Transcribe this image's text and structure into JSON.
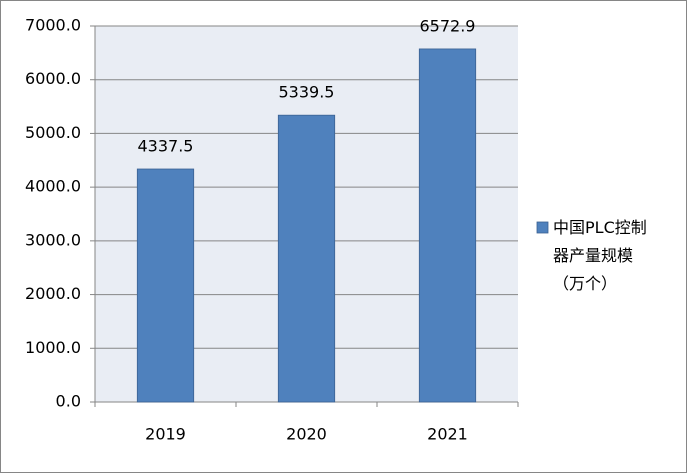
{
  "chart_data": {
    "type": "bar",
    "categories": [
      "2019",
      "2020",
      "2021"
    ],
    "series": [
      {
        "name": "中国PLC控制器产量规模（万个）",
        "color": "#4f81bd",
        "values": [
          4337.5,
          5339.5,
          6572.9
        ]
      }
    ],
    "ylim": [
      0,
      7000
    ],
    "yticks": [
      {
        "value": 0,
        "label": "0.0"
      },
      {
        "value": 1000,
        "label": "1000.0"
      },
      {
        "value": 2000,
        "label": "2000.0"
      },
      {
        "value": 3000,
        "label": "3000.0"
      },
      {
        "value": 4000,
        "label": "4000.0"
      },
      {
        "value": 5000,
        "label": "5000.0"
      },
      {
        "value": 6000,
        "label": "6000.0"
      },
      {
        "value": 7000,
        "label": "7000.0"
      }
    ],
    "grid": true,
    "legend": "right"
  }
}
